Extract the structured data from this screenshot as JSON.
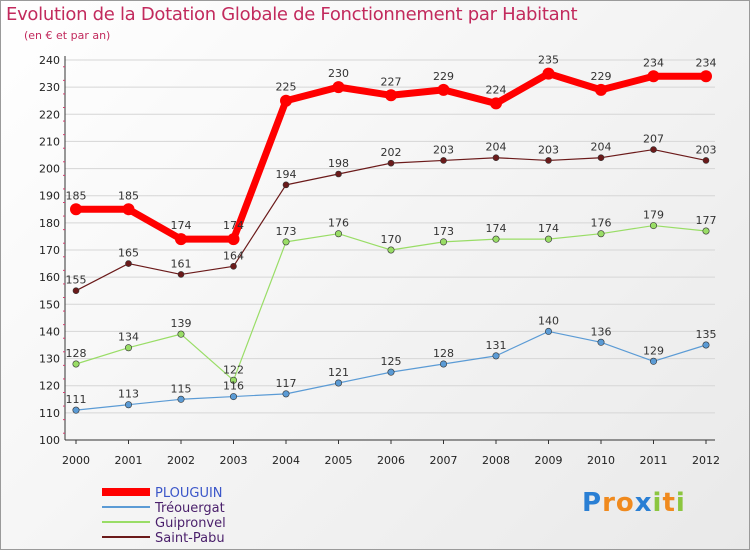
{
  "title": "Evolution de la Dotation Globale de Fonctionnement par Habitant",
  "subtitle": "(en € et par an)",
  "logo": {
    "letters": [
      "P",
      "r",
      "o",
      "x",
      "i",
      "t",
      "i"
    ],
    "colors": [
      "#2a7fd4",
      "#f08a1e",
      "#f08a1e",
      "#2a7fd4",
      "#8cc63f",
      "#f08a1e",
      "#8cc63f"
    ]
  },
  "chart_data": {
    "type": "line",
    "x": [
      "2000",
      "2001",
      "2002",
      "2003",
      "2004",
      "2005",
      "2006",
      "2007",
      "2008",
      "2009",
      "2010",
      "2011",
      "2012"
    ],
    "ylim": [
      100,
      240
    ],
    "yticks": [
      100,
      110,
      120,
      130,
      140,
      150,
      160,
      170,
      180,
      190,
      200,
      210,
      220,
      230,
      240
    ],
    "grid": "horizontal",
    "legend_position": "bottom-left",
    "series": [
      {
        "name": "Saint-Pabu",
        "color": "#6b1a1a",
        "legend_color": "#4a1f6b",
        "width": 1.2,
        "marker": 3,
        "values": [
          155,
          165,
          161,
          164,
          194,
          198,
          202,
          203,
          204,
          203,
          204,
          207,
          203
        ]
      },
      {
        "name": "Guipronvel",
        "color": "#99dd66",
        "legend_color": "#4a1f6b",
        "width": 1.2,
        "marker": 3.2,
        "values": [
          128,
          134,
          139,
          122,
          173,
          176,
          170,
          173,
          174,
          174,
          176,
          179,
          177
        ]
      },
      {
        "name": "Tréouergat",
        "color": "#5b9bd5",
        "legend_color": "#4a1f6b",
        "width": 1.2,
        "marker": 3.2,
        "values": [
          111,
          113,
          115,
          116,
          117,
          121,
          125,
          128,
          131,
          140,
          136,
          129,
          135
        ]
      },
      {
        "name": "PLOUGUIN",
        "color": "#ff0000",
        "legend_color": "#3b56c9",
        "width": 7,
        "marker": 6,
        "values": [
          185,
          185,
          174,
          174,
          225,
          230,
          227,
          229,
          224,
          235,
          229,
          234,
          234
        ]
      }
    ]
  }
}
